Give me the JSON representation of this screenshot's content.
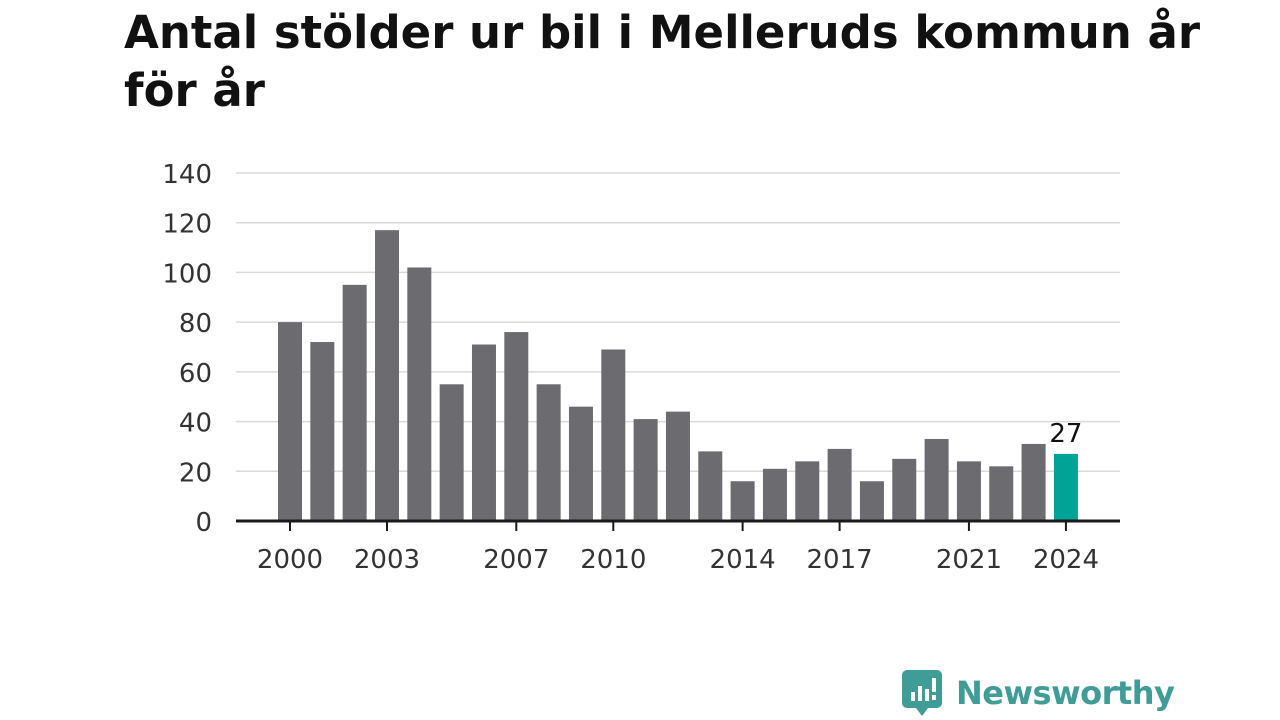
{
  "title": "Antal stölder ur bil i Melleruds kommun år för år",
  "colors": {
    "bar": "#6c6b70",
    "highlight": "#00a396",
    "grid": "#d9d9d9",
    "axis": "#1a1a1a",
    "brand": "#3f9c96"
  },
  "brand": {
    "name": "Newsworthy",
    "icon": "newsworthy-logo-icon"
  },
  "chart_data": {
    "type": "bar",
    "x": [
      2000,
      2001,
      2002,
      2003,
      2004,
      2005,
      2006,
      2007,
      2008,
      2009,
      2010,
      2011,
      2012,
      2013,
      2014,
      2015,
      2016,
      2017,
      2018,
      2019,
      2020,
      2021,
      2022,
      2023,
      2024
    ],
    "values": [
      80,
      72,
      95,
      117,
      102,
      55,
      71,
      76,
      55,
      46,
      69,
      41,
      44,
      28,
      16,
      21,
      24,
      29,
      16,
      25,
      33,
      24,
      22,
      31,
      27
    ],
    "x_tick_labels": [
      "2000",
      "2003",
      "2007",
      "2010",
      "2014",
      "2017",
      "2021",
      "2024"
    ],
    "y_ticks": [
      0,
      20,
      40,
      60,
      80,
      100,
      120,
      140
    ],
    "ylim": [
      0,
      140
    ],
    "highlight_index": 24,
    "highlight_label": "27",
    "grid": true
  }
}
